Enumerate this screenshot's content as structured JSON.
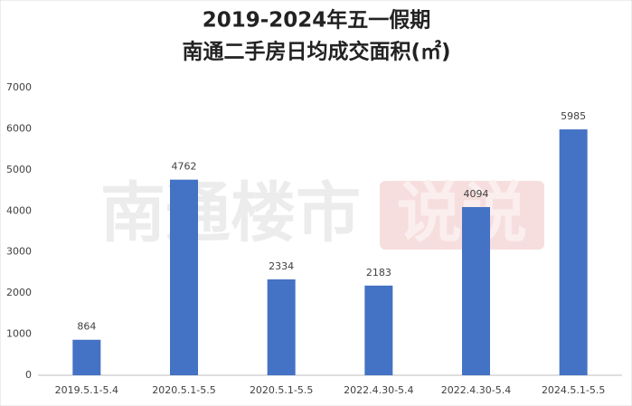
{
  "chart_data": {
    "type": "bar",
    "title": [
      "2019-2024年五一假期",
      "南通二手房日均成交面积(㎡)"
    ],
    "annotations": [
      "南通楼市",
      "说说"
    ],
    "categories": [
      "2019.5.1-5.4",
      "2020.5.1-5.5",
      "2020.5.1-5.5",
      "2022.4.30-5.4",
      "2022.4.30-5.4",
      "2024.5.1-5.5"
    ],
    "values": [
      864,
      4762,
      2334,
      2183,
      4094,
      5985
    ],
    "color": "#4472c4",
    "ylim": [
      0,
      7000
    ],
    "yticks": [
      0,
      1000,
      2000,
      3000,
      4000,
      5000,
      6000,
      7000
    ],
    "grid": false
  }
}
